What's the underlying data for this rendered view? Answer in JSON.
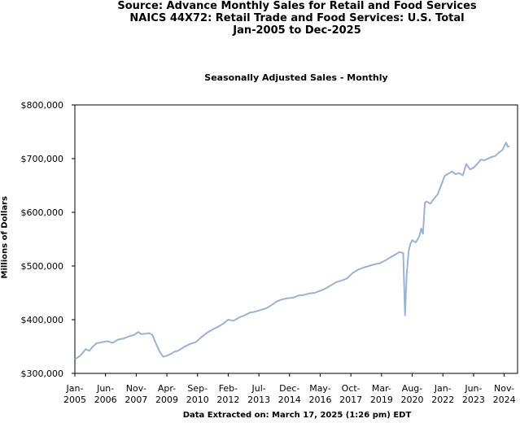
{
  "header": {
    "line1": "Source: Advance Monthly Sales for Retail and Food Services",
    "line2": "NAICS 44X72: Retail Trade and Food Services: U.S. Total",
    "line3": "Jan-2005 to Dec-2025"
  },
  "footer": "Data Extracted on: March 17, 2025 (1:26 pm) EDT",
  "chart_data": {
    "type": "line",
    "title": "Seasonally Adjusted Sales - Monthly",
    "ylabel": "Millions of Dollars",
    "ylim": [
      300000,
      800000
    ],
    "xlim": [
      2005.0,
      2025.45
    ],
    "yticks": [
      {
        "value": 300000,
        "label": "$300,000"
      },
      {
        "value": 400000,
        "label": "$400,000"
      },
      {
        "value": 500000,
        "label": "$500,000"
      },
      {
        "value": 600000,
        "label": "$600,000"
      },
      {
        "value": 700000,
        "label": "$700,000"
      },
      {
        "value": 800000,
        "label": "$800,000"
      }
    ],
    "xticks": [
      {
        "value": 2005.0,
        "month": "Jan-",
        "year": "2005"
      },
      {
        "value": 2006.417,
        "month": "Jun-",
        "year": "2006"
      },
      {
        "value": 2007.833,
        "month": "Nov-",
        "year": "2007"
      },
      {
        "value": 2009.25,
        "month": "Apr-",
        "year": "2009"
      },
      {
        "value": 2010.667,
        "month": "Sep-",
        "year": "2010"
      },
      {
        "value": 2012.083,
        "month": "Feb-",
        "year": "2012"
      },
      {
        "value": 2013.5,
        "month": "Jul-",
        "year": "2013"
      },
      {
        "value": 2014.917,
        "month": "Dec-",
        "year": "2014"
      },
      {
        "value": 2016.333,
        "month": "May-",
        "year": "2016"
      },
      {
        "value": 2017.75,
        "month": "Oct-",
        "year": "2017"
      },
      {
        "value": 2019.167,
        "month": "Mar-",
        "year": "2019"
      },
      {
        "value": 2020.583,
        "month": "Aug-",
        "year": "2020"
      },
      {
        "value": 2022.0,
        "month": "Jan-",
        "year": "2022"
      },
      {
        "value": 2023.417,
        "month": "Jun-",
        "year": "2023"
      },
      {
        "value": 2024.833,
        "month": "Nov-",
        "year": "2024"
      }
    ],
    "series": [
      {
        "name": "",
        "color": "#9bb3d0",
        "x": [
          2005.0,
          2005.25,
          2005.5,
          2005.67,
          2005.83,
          2006.0,
          2006.25,
          2006.5,
          2006.75,
          2007.0,
          2007.25,
          2007.5,
          2007.75,
          2007.92,
          2008.08,
          2008.25,
          2008.42,
          2008.58,
          2008.75,
          2008.92,
          2009.08,
          2009.25,
          2009.42,
          2009.58,
          2009.75,
          2009.92,
          2010.08,
          2010.33,
          2010.58,
          2010.83,
          2011.08,
          2011.33,
          2011.58,
          2011.83,
          2012.08,
          2012.33,
          2012.58,
          2012.83,
          2013.08,
          2013.33,
          2013.58,
          2013.83,
          2014.08,
          2014.33,
          2014.58,
          2014.83,
          2015.08,
          2015.33,
          2015.58,
          2015.83,
          2016.08,
          2016.33,
          2016.58,
          2016.83,
          2017.08,
          2017.33,
          2017.58,
          2017.83,
          2018.08,
          2018.33,
          2018.58,
          2018.83,
          2019.08,
          2019.33,
          2019.58,
          2019.83,
          2020.0,
          2020.17,
          2020.25,
          2020.33,
          2020.42,
          2020.5,
          2020.58,
          2020.75,
          2020.92,
          2021.0,
          2021.08,
          2021.17,
          2021.25,
          2021.42,
          2021.58,
          2021.75,
          2021.92,
          2022.08,
          2022.25,
          2022.42,
          2022.58,
          2022.75,
          2022.92,
          2023.08,
          2023.25,
          2023.42,
          2023.58,
          2023.75,
          2023.92,
          2024.08,
          2024.25,
          2024.42,
          2024.58,
          2024.75,
          2024.92,
          2025.0,
          2025.08
        ],
        "values": [
          326000,
          333000,
          345000,
          342000,
          350000,
          356000,
          358000,
          360000,
          357000,
          363000,
          365000,
          369000,
          372000,
          377000,
          373000,
          374000,
          375000,
          372000,
          355000,
          340000,
          331000,
          333000,
          336000,
          340000,
          342000,
          346000,
          350000,
          355000,
          358000,
          367000,
          375000,
          381000,
          386000,
          392000,
          400000,
          398000,
          404000,
          408000,
          413000,
          415000,
          418000,
          421000,
          427000,
          434000,
          438000,
          440000,
          441000,
          445000,
          446000,
          449000,
          450000,
          454000,
          458000,
          464000,
          470000,
          473000,
          477000,
          487000,
          493000,
          497000,
          500000,
          503000,
          505000,
          510000,
          516000,
          522000,
          526000,
          524000,
          408000,
          486000,
          528000,
          541000,
          548000,
          544000,
          556000,
          570000,
          560000,
          618000,
          620000,
          616000,
          625000,
          633000,
          650000,
          668000,
          672000,
          676000,
          671000,
          673000,
          669000,
          690000,
          680000,
          683000,
          690000,
          698000,
          697000,
          700000,
          703000,
          705000,
          711000,
          716000,
          730000,
          722000,
          723000
        ]
      }
    ]
  }
}
